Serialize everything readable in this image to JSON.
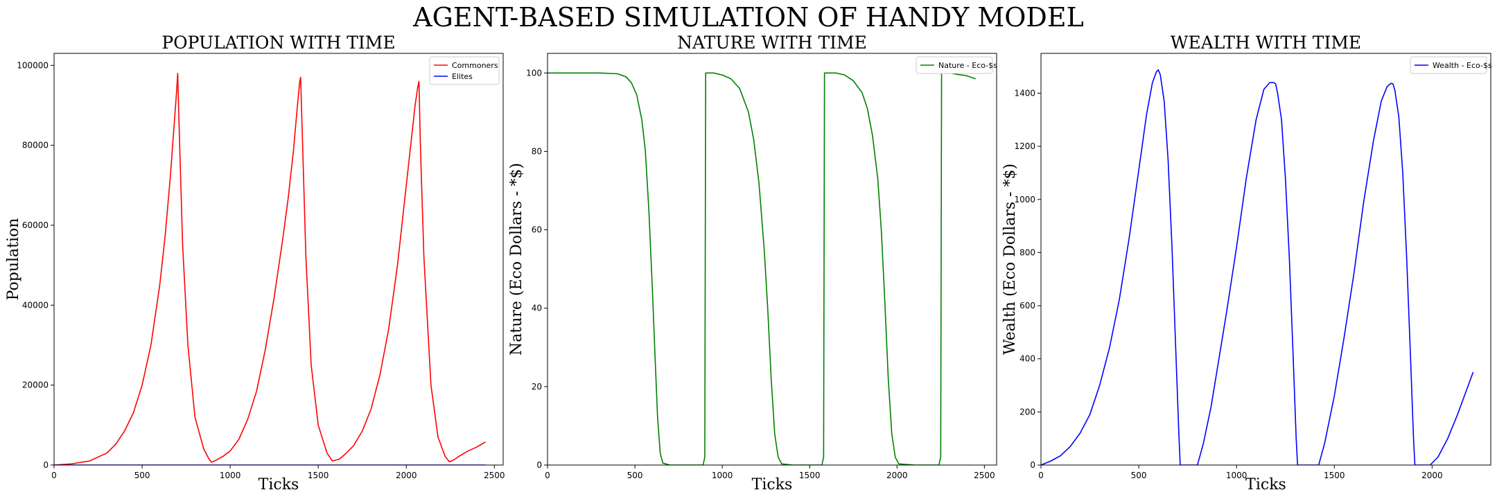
{
  "figure": {
    "title": "AGENT-BASED SIMULATION OF HANDY MODEL"
  },
  "chart_data": [
    {
      "type": "line",
      "title": "POPULATION WITH TIME",
      "xlabel": "Ticks",
      "ylabel": "Population",
      "xlim": [
        0,
        2550
      ],
      "ylim": [
        0,
        103000
      ],
      "xticks": [
        0,
        500,
        1000,
        1500,
        2000,
        2500
      ],
      "yticks": [
        0,
        20000,
        40000,
        60000,
        80000,
        100000
      ],
      "legend": "top-right",
      "series": [
        {
          "name": "Commoners",
          "color": "#ff0000",
          "x": [
            0,
            100,
            200,
            300,
            350,
            400,
            450,
            500,
            550,
            600,
            630,
            660,
            680,
            695,
            702,
            710,
            730,
            760,
            800,
            850,
            880,
            895,
            920,
            960,
            1000,
            1050,
            1100,
            1150,
            1200,
            1250,
            1300,
            1330,
            1360,
            1380,
            1395,
            1400,
            1410,
            1430,
            1460,
            1500,
            1550,
            1580,
            1620,
            1650,
            1700,
            1750,
            1800,
            1850,
            1900,
            1950,
            2000,
            2030,
            2050,
            2065,
            2072,
            2080,
            2100,
            2140,
            2180,
            2220,
            2245,
            2270,
            2300,
            2350,
            2400,
            2450
          ],
          "y": [
            0,
            300,
            1000,
            3000,
            5200,
            8500,
            13000,
            20000,
            30000,
            45000,
            57000,
            72000,
            84000,
            93000,
            98000,
            85000,
            55000,
            30000,
            12000,
            4000,
            1500,
            700,
            1200,
            2200,
            3500,
            6500,
            11500,
            18500,
            29000,
            42000,
            57000,
            67000,
            79000,
            89000,
            96000,
            97000,
            82000,
            52000,
            25000,
            10000,
            3000,
            1000,
            1500,
            2600,
            4800,
            8500,
            14000,
            22500,
            34000,
            50000,
            70000,
            82000,
            90000,
            94500,
            96000,
            80000,
            52000,
            20000,
            7000,
            2200,
            800,
            1300,
            2200,
            3500,
            4500,
            5800
          ]
        },
        {
          "name": "Elites",
          "color": "#0000ff",
          "x": [
            0,
            2450
          ],
          "y": [
            0,
            0
          ]
        }
      ]
    },
    {
      "type": "line",
      "title": "NATURE WITH TIME",
      "xlabel": "Ticks",
      "ylabel": "Nature (Eco Dollars - *$)",
      "xlim": [
        0,
        2570
      ],
      "ylim": [
        0,
        105
      ],
      "xticks": [
        0,
        500,
        1000,
        1500,
        2000,
        2500
      ],
      "yticks": [
        0,
        20,
        40,
        60,
        80,
        100
      ],
      "legend": "top-right",
      "series": [
        {
          "name": "Nature - Eco-$s",
          "color": "#008000",
          "x": [
            0,
            300,
            400,
            450,
            480,
            510,
            540,
            560,
            580,
            600,
            615,
            630,
            645,
            660,
            700,
            800,
            890,
            900,
            905,
            950,
            1000,
            1050,
            1100,
            1150,
            1180,
            1210,
            1240,
            1260,
            1280,
            1300,
            1320,
            1340,
            1400,
            1500,
            1570,
            1580,
            1585,
            1650,
            1700,
            1750,
            1800,
            1830,
            1860,
            1890,
            1910,
            1930,
            1950,
            1970,
            1990,
            2010,
            2100,
            2240,
            2250,
            2255,
            2300,
            2350,
            2400,
            2450
          ],
          "y": [
            100,
            100,
            99.8,
            99,
            97.5,
            94.5,
            88,
            80,
            65,
            45,
            28,
            12,
            3,
            0.5,
            0,
            0,
            0,
            2,
            100,
            100,
            99.5,
            98.5,
            96,
            90,
            83,
            72,
            55,
            40,
            22,
            8,
            2,
            0.3,
            0,
            0,
            0,
            2,
            100,
            100,
            99.5,
            98,
            95,
            91,
            84,
            73,
            60,
            42,
            22,
            8,
            2,
            0.3,
            0,
            0,
            2,
            100,
            100,
            99.6,
            99.3,
            98.5
          ]
        }
      ]
    },
    {
      "type": "line",
      "title": "WEALTH WITH TIME",
      "xlabel": "Ticks",
      "ylabel": "Wealth (Eco Dollars - *$)",
      "xlim": [
        0,
        2300
      ],
      "ylim": [
        0,
        1550
      ],
      "xticks": [
        0,
        500,
        1000,
        1500,
        2000
      ],
      "yticks": [
        0,
        200,
        400,
        600,
        800,
        1000,
        1200,
        1400
      ],
      "legend": "top-right",
      "series": [
        {
          "name": "Wealth - Eco-$s",
          "color": "#0000ff",
          "x": [
            0,
            50,
            100,
            150,
            200,
            250,
            300,
            350,
            400,
            450,
            500,
            540,
            570,
            590,
            600,
            610,
            630,
            650,
            670,
            690,
            705,
            712,
            720,
            800,
            830,
            870,
            910,
            950,
            1000,
            1050,
            1100,
            1140,
            1170,
            1190,
            1200,
            1210,
            1230,
            1250,
            1270,
            1290,
            1305,
            1312,
            1320,
            1420,
            1450,
            1500,
            1550,
            1600,
            1650,
            1700,
            1740,
            1770,
            1790,
            1800,
            1810,
            1830,
            1850,
            1870,
            1890,
            1905,
            1912,
            1920,
            1990,
            2030,
            2080,
            2130,
            2180,
            2210
          ],
          "y": [
            0,
            15,
            35,
            70,
            120,
            190,
            300,
            440,
            620,
            850,
            1110,
            1320,
            1440,
            1480,
            1488,
            1470,
            1370,
            1150,
            820,
            420,
            120,
            0,
            0,
            0,
            80,
            220,
            400,
            580,
            820,
            1080,
            1300,
            1415,
            1440,
            1440,
            1435,
            1400,
            1300,
            1080,
            780,
            400,
            100,
            0,
            0,
            0,
            80,
            260,
            480,
            720,
            990,
            1220,
            1370,
            1425,
            1437,
            1435,
            1410,
            1310,
            1100,
            780,
            400,
            100,
            0,
            0,
            0,
            30,
            100,
            190,
            290,
            350
          ]
        }
      ]
    }
  ]
}
